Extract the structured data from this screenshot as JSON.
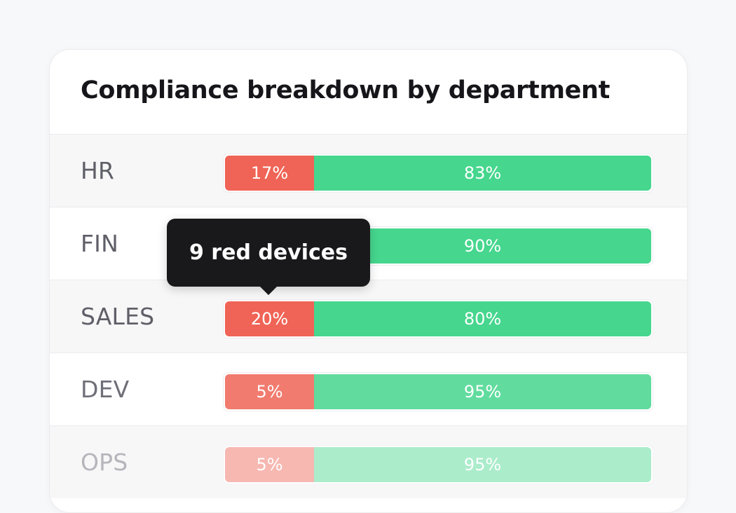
{
  "card": {
    "title": "Compliance breakdown by department"
  },
  "departments": [
    {
      "label": "HR",
      "red_percent": "17%",
      "green_percent": "83%"
    },
    {
      "label": "FIN",
      "red_percent": "",
      "green_percent": "90%"
    },
    {
      "label": "SALES",
      "red_percent": "20%",
      "green_percent": "80%"
    },
    {
      "label": "DEV",
      "red_percent": "5%",
      "green_percent": "95%"
    },
    {
      "label": "OPS",
      "red_percent": "5%",
      "green_percent": "95%"
    }
  ],
  "tooltip": {
    "text": "9 red devices"
  },
  "colors": {
    "red": "#ef6456",
    "green": "#46d68e",
    "tooltip_bg": "#19191b"
  }
}
